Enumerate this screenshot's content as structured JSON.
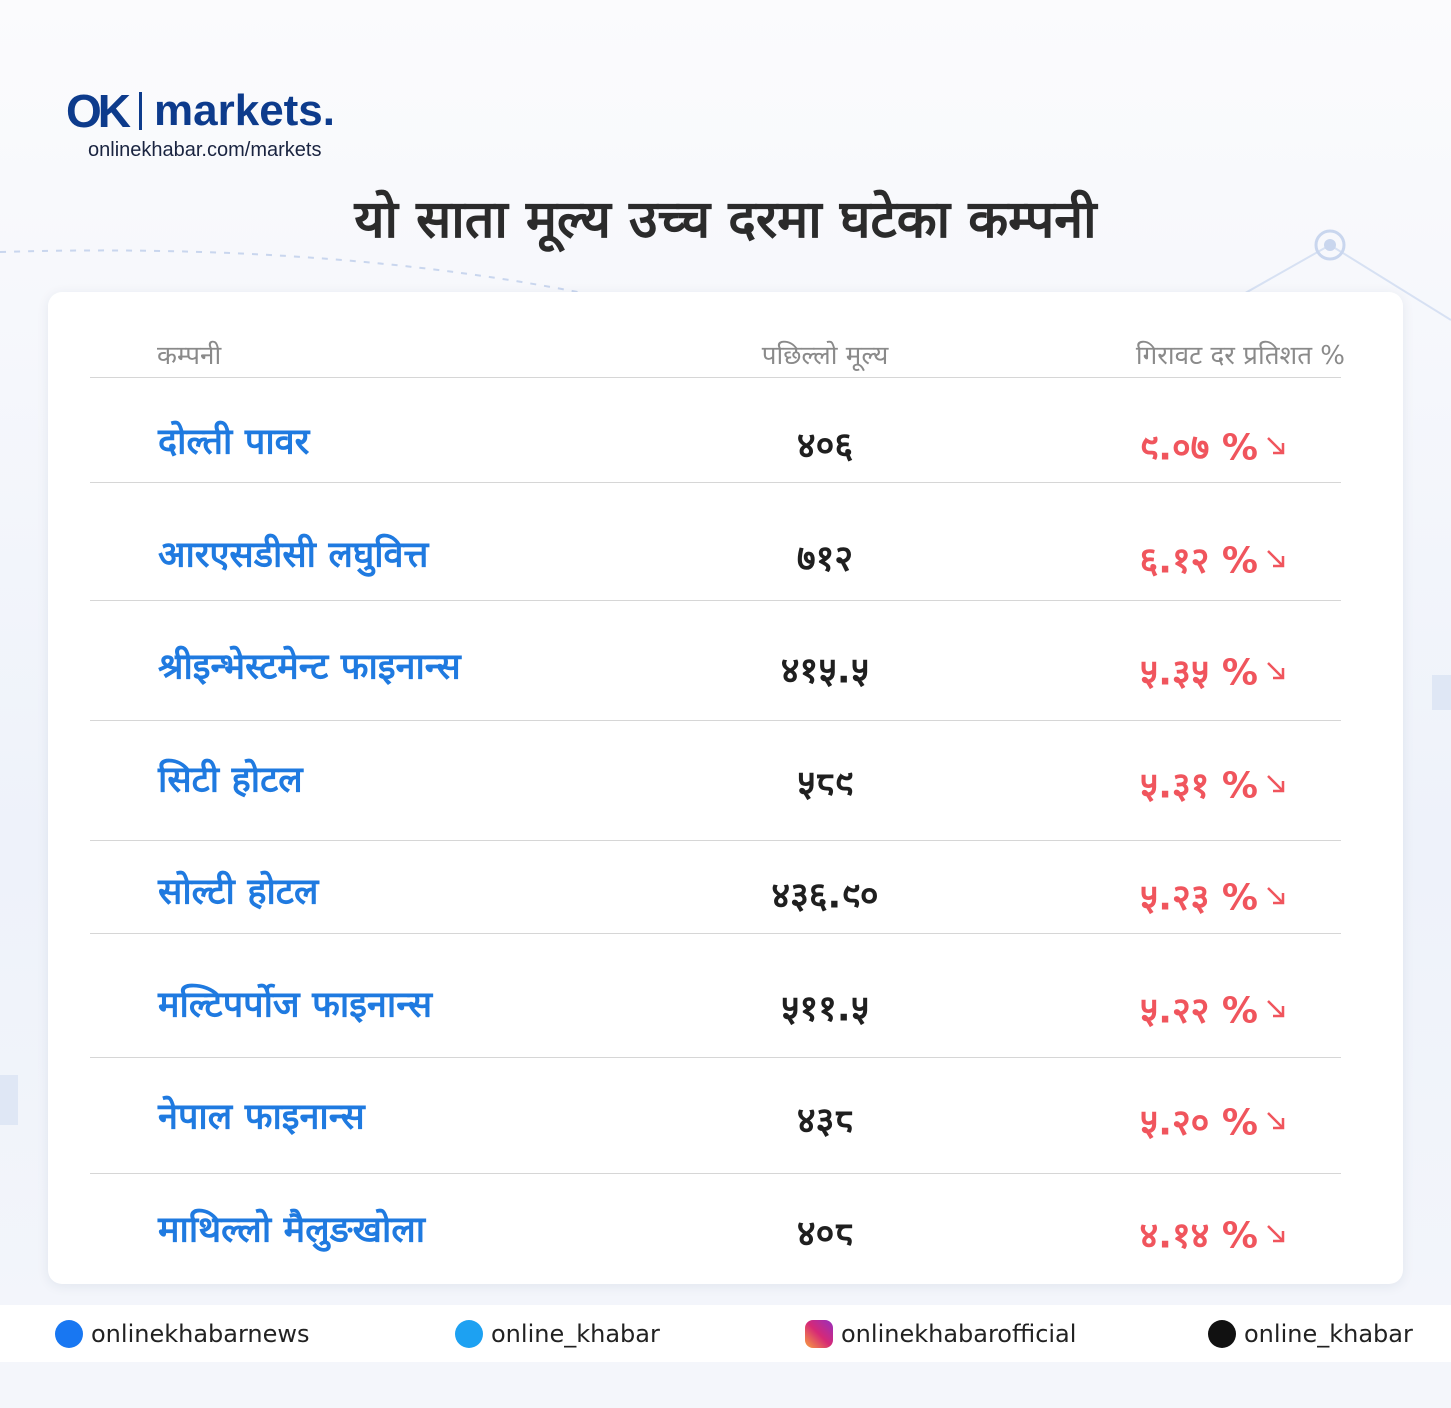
{
  "header": {
    "logo_mark": "OK",
    "logo_brand": "markets.",
    "url": "onlinekhabar.com/markets"
  },
  "title": "यो साता मूल्य उच्च दरमा घटेका कम्पनी",
  "table": {
    "columns": [
      "कम्पनी",
      "पछिल्लो मूल्य",
      "गिरावट दर प्रतिशत %"
    ],
    "rows": [
      [
        "दोल्ती पावर",
        "४०६",
        "९.०७ %"
      ],
      [
        "आरएसडीसी लघुवित्त",
        "७१२",
        "६.१२ %"
      ],
      [
        "श्रीइन्भेस्टमेन्ट फाइनान्स",
        "४१५.५",
        "५.३५ %"
      ],
      [
        "सिटी होटल",
        "५८९",
        "५.३१ %"
      ],
      [
        "सोल्टी होटल",
        "४३६.९०",
        "५.२३ %"
      ],
      [
        "मल्टिपर्पोज फाइनान्स",
        "५११.५",
        "५.२२ %"
      ],
      [
        "नेपाल फाइनान्स",
        "४३८",
        "५.२० %"
      ],
      [
        "माथिल्लो मैलुङखोला",
        "४०८",
        "४.१४ %"
      ]
    ]
  },
  "footer": {
    "facebook": "onlinekhabarnews",
    "twitter": "online_khabar",
    "instagram": "onlinekhabarofficial",
    "tiktok": "online_khabar"
  }
}
